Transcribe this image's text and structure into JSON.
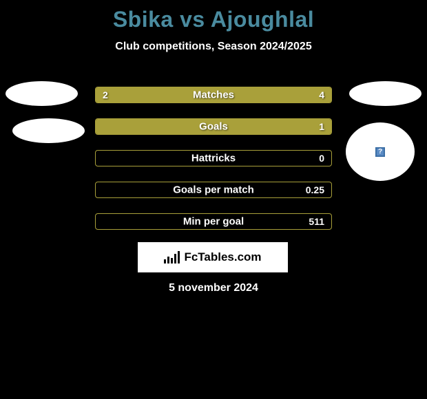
{
  "title": "Sbika vs Ajoughlal",
  "subtitle": "Club competitions, Season 2024/2025",
  "date": "5 november 2024",
  "brand": "FcTables.com",
  "colors": {
    "background": "#000000",
    "title": "#4a8b9f",
    "text": "#ffffff",
    "bar_fill": "#a9a03a",
    "bar_border": "#a9a03a",
    "bar_empty": "transparent",
    "avatar_bg": "#ffffff"
  },
  "bars": [
    {
      "label": "Matches",
      "left_value": "2",
      "right_value": "4",
      "left_pct": 33,
      "right_pct": 67,
      "left_filled": true,
      "right_filled": true
    },
    {
      "label": "Goals",
      "left_value": "",
      "right_value": "1",
      "left_pct": 0,
      "right_pct": 100,
      "left_filled": false,
      "right_filled": true
    },
    {
      "label": "Hattricks",
      "left_value": "",
      "right_value": "0",
      "left_pct": 0,
      "right_pct": 0,
      "left_filled": false,
      "right_filled": false
    },
    {
      "label": "Goals per match",
      "left_value": "",
      "right_value": "0.25",
      "left_pct": 0,
      "right_pct": 0,
      "left_filled": false,
      "right_filled": false
    },
    {
      "label": "Min per goal",
      "left_value": "",
      "right_value": "511",
      "left_pct": 0,
      "right_pct": 0,
      "left_filled": false,
      "right_filled": false
    }
  ]
}
